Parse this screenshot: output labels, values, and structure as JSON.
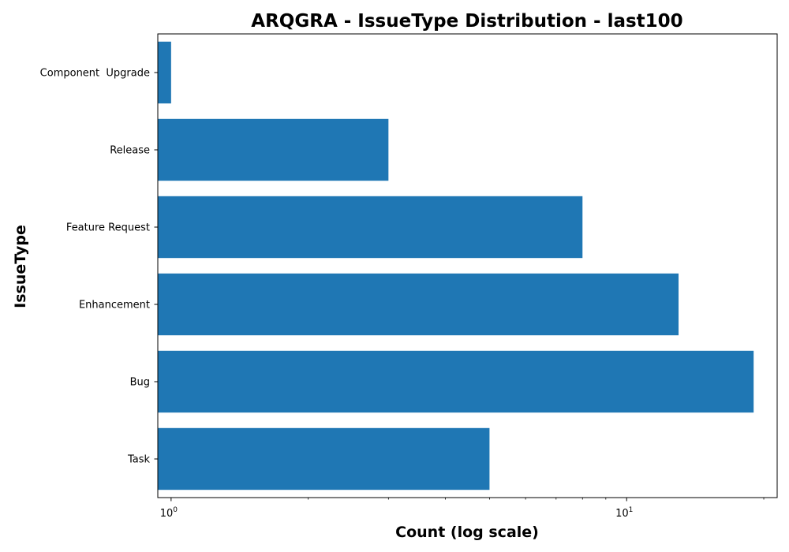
{
  "chart_data": {
    "type": "bar",
    "orientation": "horizontal",
    "title": "ARQGRA - IssueType Distribution - last100",
    "xlabel": "Count (log scale)",
    "ylabel": "IssueType",
    "x_scale": "log",
    "xlim": [
      0.935,
      21.4
    ],
    "x_ticks": [
      {
        "base": "10",
        "exp": "0",
        "value": 1
      },
      {
        "base": "10",
        "exp": "1",
        "value": 10
      }
    ],
    "categories": [
      "Component  Upgrade",
      "Release",
      "Feature Request",
      "Enhancement",
      "Bug",
      "Task"
    ],
    "values": [
      1,
      3,
      8,
      13,
      19,
      5
    ],
    "bar_color": "#1f77b4",
    "grid": false,
    "legend": "none"
  }
}
